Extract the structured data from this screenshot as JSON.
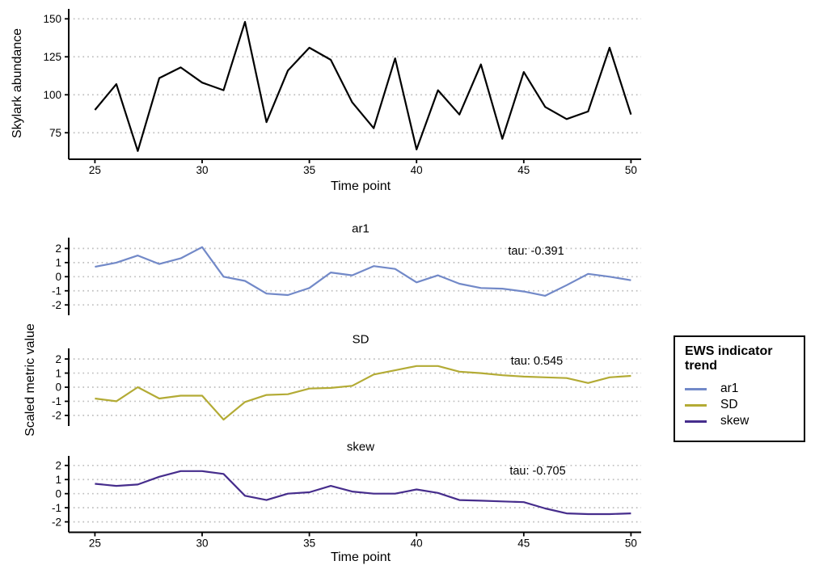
{
  "shared": {
    "facet_ylabel": "Scaled metric value",
    "facet_xlabel": "Time point"
  },
  "legend": {
    "title_line1": "EWS indicator",
    "title_line2": "trend",
    "items": [
      {
        "label": "ar1",
        "color": "#7289c8"
      },
      {
        "label": "SD",
        "color": "#b3ab35"
      },
      {
        "label": "skew",
        "color": "#462d8c"
      }
    ]
  },
  "chart_data": [
    {
      "type": "line",
      "title": "",
      "xlabel": "Time point",
      "ylabel": "Skylark abundance",
      "color": "#000000",
      "x": [
        25,
        26,
        27,
        28,
        29,
        30,
        31,
        32,
        33,
        34,
        35,
        36,
        37,
        38,
        39,
        40,
        41,
        42,
        43,
        44,
        45,
        46,
        47,
        48,
        49,
        50
      ],
      "y": [
        90,
        107,
        63,
        111,
        118,
        108,
        103,
        148,
        82,
        116,
        131,
        123,
        95,
        78,
        124,
        64,
        103,
        87,
        120,
        71,
        115,
        92,
        84,
        89,
        131,
        87
      ],
      "yticks": [
        150,
        125,
        100,
        75
      ],
      "xticks": [
        25,
        30,
        35,
        40,
        45,
        50
      ],
      "xlim": [
        23.8,
        51.2
      ],
      "ylim": [
        57,
        157
      ],
      "grid": "dotted-horizontal"
    },
    {
      "type": "line",
      "facet": "ar1",
      "annotation": "tau: -0.391",
      "color": "#7289c8",
      "x": [
        25,
        26,
        27,
        28,
        29,
        30,
        31,
        32,
        33,
        34,
        35,
        36,
        37,
        38,
        39,
        40,
        41,
        42,
        43,
        44,
        45,
        46,
        47,
        48,
        49,
        50
      ],
      "y": [
        0.7,
        1.0,
        1.5,
        0.9,
        1.3,
        2.1,
        0.0,
        -0.3,
        -1.2,
        -1.3,
        -0.8,
        0.3,
        0.1,
        0.75,
        0.55,
        -0.4,
        0.1,
        -0.5,
        -0.8,
        -0.85,
        -1.05,
        -1.35,
        -0.6,
        0.2,
        0.0,
        -0.25
      ],
      "yticks": [
        2,
        1,
        0,
        -1,
        -2
      ],
      "xticks": [
        25,
        30,
        35,
        40,
        45,
        50
      ],
      "ylim": [
        -2.75,
        2.75
      ],
      "grid": "dotted-horizontal"
    },
    {
      "type": "line",
      "facet": "SD",
      "annotation": "tau: 0.545",
      "color": "#b3ab35",
      "x": [
        25,
        26,
        27,
        28,
        29,
        30,
        31,
        32,
        33,
        34,
        35,
        36,
        37,
        38,
        39,
        40,
        41,
        42,
        43,
        44,
        45,
        46,
        47,
        48,
        49,
        50
      ],
      "y": [
        -0.8,
        -1.0,
        0.0,
        -0.8,
        -0.6,
        -0.6,
        -2.3,
        -1.05,
        -0.55,
        -0.5,
        -0.1,
        -0.05,
        0.1,
        0.9,
        1.2,
        1.5,
        1.5,
        1.1,
        1.0,
        0.85,
        0.75,
        0.7,
        0.65,
        0.3,
        0.7,
        0.8
      ],
      "yticks": [
        2,
        1,
        0,
        -1,
        -2
      ],
      "xticks": [
        25,
        30,
        35,
        40,
        45,
        50
      ],
      "ylim": [
        -2.75,
        2.75
      ],
      "grid": "dotted-horizontal"
    },
    {
      "type": "line",
      "facet": "skew",
      "annotation": "tau: -0.705",
      "color": "#462d8c",
      "x": [
        25,
        26,
        27,
        28,
        29,
        30,
        31,
        32,
        33,
        34,
        35,
        36,
        37,
        38,
        39,
        40,
        41,
        42,
        43,
        44,
        45,
        46,
        47,
        48,
        49,
        50
      ],
      "y": [
        0.7,
        0.55,
        0.65,
        1.2,
        1.6,
        1.6,
        1.4,
        -0.15,
        -0.45,
        0.0,
        0.1,
        0.55,
        0.15,
        0.0,
        0.0,
        0.3,
        0.05,
        -0.45,
        -0.5,
        -0.55,
        -0.6,
        -1.05,
        -1.4,
        -1.45,
        -1.45,
        -1.4
      ],
      "yticks": [
        2,
        1,
        0,
        -1,
        -2
      ],
      "xticks": [
        25,
        30,
        35,
        40,
        45,
        50
      ],
      "ylim": [
        -2.75,
        2.75
      ],
      "grid": "dotted-horizontal",
      "legend_position": "right"
    }
  ]
}
